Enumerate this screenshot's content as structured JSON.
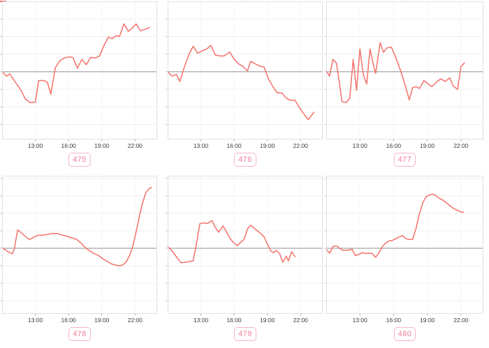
{
  "styles": {
    "line_color": "#f4716a",
    "zero_line_color": "#8e8e8e",
    "grid_color": "#efefef",
    "vgrid_color": "#f5f5f5",
    "border_color": "#e0e0e0",
    "tick_color": "#cccccc",
    "axis_tick_color": "#aaaaaa",
    "badge_border_color": "#f6b5c8",
    "badge_text_color": "#ee8099",
    "axis_label_color": "#3c3c3c"
  },
  "x_axis": {
    "tick_labels": [
      "13:00",
      "16:00",
      "19:00",
      "22:00"
    ],
    "tick_hours": [
      13,
      16,
      19,
      22
    ],
    "range_hours": [
      10,
      24
    ]
  },
  "fragments": {
    "caption_475": "·· ··· ·· · ··· ·· ··",
    "caption_476": "· ·",
    "top_col2": "· ·",
    "top_col3": "· ·"
  },
  "chart_data": [
    {
      "type": "line",
      "badge": "475",
      "x_tick_labels": [
        "13:00",
        "16:00",
        "19:00",
        "22:00"
      ],
      "x_tick_hours": [
        13,
        16,
        19,
        22
      ],
      "x_range_hours": [
        10,
        24
      ],
      "ylim": [
        -3.85,
        4.0
      ],
      "zero_line": 0,
      "grid": true,
      "legend": "none",
      "points": [
        [
          10,
          0
        ],
        [
          10.4,
          -0.25
        ],
        [
          10.7,
          -0.12
        ],
        [
          11.1,
          -0.5
        ],
        [
          11.7,
          -1.05
        ],
        [
          12.1,
          -1.55
        ],
        [
          12.5,
          -1.75
        ],
        [
          13,
          -1.73
        ],
        [
          13.3,
          -0.5
        ],
        [
          13.8,
          -0.5
        ],
        [
          14.1,
          -0.62
        ],
        [
          14.4,
          -1.28
        ],
        [
          14.8,
          0.22
        ],
        [
          15.2,
          0.62
        ],
        [
          15.6,
          0.78
        ],
        [
          16.1,
          0.85
        ],
        [
          16.4,
          0.8
        ],
        [
          16.8,
          0.2
        ],
        [
          17.2,
          0.7
        ],
        [
          17.6,
          0.4
        ],
        [
          18,
          0.82
        ],
        [
          18.4,
          0.78
        ],
        [
          18.8,
          0.9
        ],
        [
          19.2,
          1.5
        ],
        [
          19.6,
          1.98
        ],
        [
          19.9,
          1.88
        ],
        [
          20.3,
          2.05
        ],
        [
          20.6,
          2
        ],
        [
          21,
          2.72
        ],
        [
          21.4,
          2.3
        ],
        [
          21.7,
          2.45
        ],
        [
          22.1,
          2.72
        ],
        [
          22.5,
          2.33
        ],
        [
          22.9,
          2.42
        ],
        [
          23.3,
          2.52
        ]
      ]
    },
    {
      "type": "line",
      "badge": "476",
      "x_tick_labels": [
        "13:00",
        "16:00",
        "19:00",
        "22:00"
      ],
      "x_tick_hours": [
        13,
        16,
        19,
        22
      ],
      "x_range_hours": [
        10,
        24
      ],
      "ylim": [
        -3.85,
        4.0
      ],
      "zero_line": 0,
      "grid": true,
      "legend": "none",
      "points": [
        [
          10,
          0
        ],
        [
          10.4,
          -0.25
        ],
        [
          10.8,
          -0.15
        ],
        [
          11.1,
          -0.55
        ],
        [
          11.5,
          0.25
        ],
        [
          11.9,
          0.95
        ],
        [
          12.3,
          1.45
        ],
        [
          12.7,
          1.05
        ],
        [
          13.1,
          1.18
        ],
        [
          13.5,
          1.28
        ],
        [
          13.9,
          1.5
        ],
        [
          14.3,
          0.95
        ],
        [
          14.7,
          0.9
        ],
        [
          15.1,
          0.9
        ],
        [
          15.6,
          1.12
        ],
        [
          16,
          0.72
        ],
        [
          16.4,
          0.45
        ],
        [
          16.8,
          0.3
        ],
        [
          17.2,
          0.05
        ],
        [
          17.5,
          0.6
        ],
        [
          17.9,
          0.45
        ],
        [
          18.3,
          0.32
        ],
        [
          18.7,
          0.27
        ],
        [
          19.1,
          -0.4
        ],
        [
          19.5,
          -0.85
        ],
        [
          19.9,
          -1.2
        ],
        [
          20.3,
          -1.2
        ],
        [
          20.7,
          -1.5
        ],
        [
          21.1,
          -1.62
        ],
        [
          21.5,
          -1.62
        ],
        [
          21.9,
          -2.05
        ],
        [
          22.3,
          -2.4
        ],
        [
          22.7,
          -2.72
        ],
        [
          23.2,
          -2.3
        ]
      ]
    },
    {
      "type": "line",
      "badge": "477",
      "x_tick_labels": [
        "13:00",
        "16:00",
        "19:00",
        "22:00"
      ],
      "x_tick_hours": [
        13,
        16,
        19,
        22
      ],
      "x_range_hours": [
        10,
        24
      ],
      "ylim": [
        -3.85,
        4.0
      ],
      "zero_line": 0,
      "grid": true,
      "legend": "none",
      "points": [
        [
          10,
          0.05
        ],
        [
          10.3,
          -0.25
        ],
        [
          10.6,
          0.7
        ],
        [
          10.9,
          0.5
        ],
        [
          11.1,
          -0.3
        ],
        [
          11.4,
          -1.7
        ],
        [
          11.8,
          -1.75
        ],
        [
          12.1,
          -1.5
        ],
        [
          12.4,
          0.7
        ],
        [
          12.7,
          -1.05
        ],
        [
          13,
          1.3
        ],
        [
          13.3,
          -0.15
        ],
        [
          13.6,
          -0.7
        ],
        [
          13.9,
          1.3
        ],
        [
          14.2,
          0.4
        ],
        [
          14.4,
          -0.1
        ],
        [
          14.8,
          1.65
        ],
        [
          15.1,
          1.1
        ],
        [
          15.4,
          1.35
        ],
        [
          15.8,
          1.4
        ],
        [
          16.2,
          0.8
        ],
        [
          16.6,
          0.1
        ],
        [
          17,
          -0.7
        ],
        [
          17.4,
          -1.6
        ],
        [
          17.7,
          -0.9
        ],
        [
          18,
          -0.85
        ],
        [
          18.3,
          -0.95
        ],
        [
          18.7,
          -0.5
        ],
        [
          19,
          -0.65
        ],
        [
          19.4,
          -0.85
        ],
        [
          19.8,
          -0.6
        ],
        [
          20.2,
          -0.4
        ],
        [
          20.6,
          -0.55
        ],
        [
          21,
          -0.35
        ],
        [
          21.3,
          -0.8
        ],
        [
          21.7,
          -1
        ],
        [
          22,
          0.3
        ],
        [
          22.3,
          0.5
        ]
      ]
    },
    {
      "type": "line",
      "badge": "478",
      "x_tick_labels": [
        "13:00",
        "16:00",
        "19:00",
        "22:00"
      ],
      "x_tick_hours": [
        13,
        16,
        19,
        22
      ],
      "x_range_hours": [
        10,
        24
      ],
      "ylim": [
        -3.75,
        4.15
      ],
      "zero_line": 0,
      "grid": true,
      "legend": "none",
      "points": [
        [
          10,
          0.05
        ],
        [
          10.3,
          -0.1
        ],
        [
          10.6,
          -0.22
        ],
        [
          10.9,
          -0.32
        ],
        [
          11.1,
          -0.05
        ],
        [
          11.4,
          1.05
        ],
        [
          11.8,
          0.85
        ],
        [
          12.2,
          0.62
        ],
        [
          12.5,
          0.5
        ],
        [
          12.9,
          0.65
        ],
        [
          13.3,
          0.75
        ],
        [
          13.7,
          0.75
        ],
        [
          14.1,
          0.8
        ],
        [
          14.5,
          0.85
        ],
        [
          15,
          0.85
        ],
        [
          15.4,
          0.75
        ],
        [
          15.8,
          0.7
        ],
        [
          16.2,
          0.62
        ],
        [
          16.7,
          0.52
        ],
        [
          17.1,
          0.32
        ],
        [
          17.5,
          0.05
        ],
        [
          17.9,
          -0.15
        ],
        [
          18.3,
          -0.3
        ],
        [
          18.7,
          -0.42
        ],
        [
          19.1,
          -0.6
        ],
        [
          19.5,
          -0.75
        ],
        [
          19.9,
          -0.9
        ],
        [
          20.3,
          -0.97
        ],
        [
          20.6,
          -1
        ],
        [
          20.9,
          -0.95
        ],
        [
          21.2,
          -0.78
        ],
        [
          21.5,
          -0.42
        ],
        [
          21.8,
          0.12
        ],
        [
          22.1,
          0.95
        ],
        [
          22.4,
          1.85
        ],
        [
          22.7,
          2.65
        ],
        [
          23,
          3.2
        ],
        [
          23.3,
          3.42
        ],
        [
          23.5,
          3.48
        ]
      ]
    },
    {
      "type": "line",
      "badge": "479",
      "x_tick_labels": [
        "13:00",
        "16:00",
        "19:00",
        "22:00"
      ],
      "x_tick_hours": [
        13,
        16,
        19,
        22
      ],
      "x_range_hours": [
        10,
        24
      ],
      "ylim": [
        -3.75,
        4.15
      ],
      "zero_line": 0,
      "grid": true,
      "legend": "none",
      "points": [
        [
          10,
          0.1
        ],
        [
          10.4,
          -0.15
        ],
        [
          10.8,
          -0.5
        ],
        [
          11.2,
          -0.82
        ],
        [
          11.6,
          -0.8
        ],
        [
          12,
          -0.75
        ],
        [
          12.3,
          -0.72
        ],
        [
          12.6,
          0.25
        ],
        [
          12.9,
          1.4
        ],
        [
          13.2,
          1.45
        ],
        [
          13.6,
          1.42
        ],
        [
          14,
          1.58
        ],
        [
          14.3,
          1.2
        ],
        [
          14.6,
          0.92
        ],
        [
          15,
          1.28
        ],
        [
          15.3,
          0.95
        ],
        [
          15.7,
          0.5
        ],
        [
          16,
          0.3
        ],
        [
          16.3,
          0.15
        ],
        [
          16.6,
          0.35
        ],
        [
          16.9,
          0.5
        ],
        [
          17.2,
          1.1
        ],
        [
          17.5,
          1.32
        ],
        [
          17.8,
          1.15
        ],
        [
          18.1,
          1
        ],
        [
          18.4,
          0.85
        ],
        [
          18.7,
          0.65
        ],
        [
          19,
          0.25
        ],
        [
          19.3,
          -0.15
        ],
        [
          19.6,
          -0.25
        ],
        [
          19.8,
          -0.12
        ],
        [
          20.1,
          -0.3
        ],
        [
          20.4,
          -0.8
        ],
        [
          20.7,
          -0.45
        ],
        [
          20.9,
          -0.72
        ],
        [
          21.2,
          -0.2
        ],
        [
          21.5,
          -0.48
        ]
      ]
    },
    {
      "type": "line",
      "badge": "480",
      "x_tick_labels": [
        "13:00",
        "16:00",
        "19:00",
        "22:00"
      ],
      "x_tick_hours": [
        13,
        16,
        19,
        22
      ],
      "x_range_hours": [
        10,
        24
      ],
      "ylim": [
        -3.75,
        4.15
      ],
      "zero_line": 0,
      "grid": true,
      "legend": "none",
      "points": [
        [
          10,
          -0.05
        ],
        [
          10.3,
          -0.28
        ],
        [
          10.6,
          0.1
        ],
        [
          10.9,
          0.15
        ],
        [
          11.1,
          0.05
        ],
        [
          11.4,
          -0.1
        ],
        [
          11.7,
          -0.12
        ],
        [
          12,
          -0.1
        ],
        [
          12.3,
          -0.05
        ],
        [
          12.6,
          -0.42
        ],
        [
          12.9,
          -0.35
        ],
        [
          13.2,
          -0.25
        ],
        [
          13.5,
          -0.3
        ],
        [
          13.8,
          -0.28
        ],
        [
          14.1,
          -0.3
        ],
        [
          14.4,
          -0.52
        ],
        [
          14.7,
          -0.25
        ],
        [
          15,
          0.1
        ],
        [
          15.3,
          0.3
        ],
        [
          15.6,
          0.42
        ],
        [
          15.9,
          0.45
        ],
        [
          16.2,
          0.55
        ],
        [
          16.5,
          0.65
        ],
        [
          16.8,
          0.72
        ],
        [
          17.1,
          0.55
        ],
        [
          17.4,
          0.5
        ],
        [
          17.7,
          0.52
        ],
        [
          18,
          1.15
        ],
        [
          18.3,
          1.95
        ],
        [
          18.6,
          2.6
        ],
        [
          18.9,
          2.95
        ],
        [
          19.2,
          3.05
        ],
        [
          19.5,
          3.1
        ],
        [
          19.8,
          3
        ],
        [
          20.1,
          2.85
        ],
        [
          20.4,
          2.75
        ],
        [
          20.7,
          2.6
        ],
        [
          21,
          2.45
        ],
        [
          21.3,
          2.3
        ],
        [
          21.6,
          2.2
        ],
        [
          21.9,
          2.1
        ],
        [
          22.2,
          2.05
        ]
      ]
    }
  ]
}
